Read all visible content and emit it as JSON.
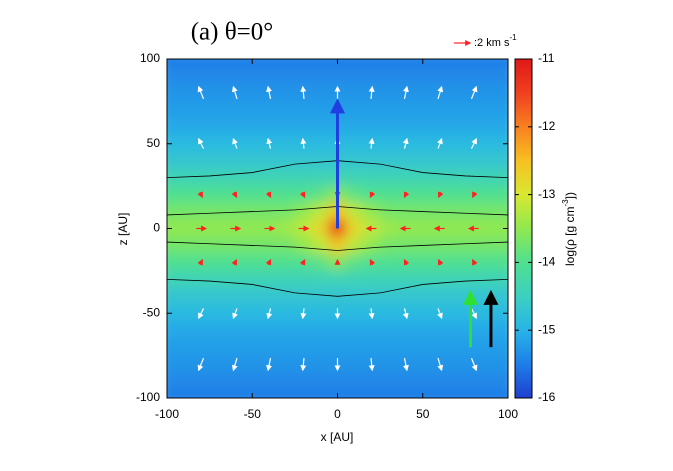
{
  "chart_data": {
    "type": "heatmap",
    "title": "(a) θ=0°",
    "xlabel": "x [AU]",
    "ylabel": "z [AU]",
    "xlim": [
      -100,
      100
    ],
    "ylim": [
      -100,
      100
    ],
    "xticks": [
      -100,
      -50,
      0,
      50,
      100
    ],
    "yticks": [
      -100,
      -50,
      0,
      50,
      100
    ],
    "x": [
      -100,
      -90,
      -80,
      -70,
      -60,
      -50,
      -40,
      -30,
      -20,
      -10,
      0,
      10,
      20,
      30,
      40,
      50,
      60,
      70,
      80,
      90,
      100
    ],
    "z": [
      100,
      90,
      80,
      70,
      60,
      50,
      40,
      30,
      20,
      10,
      0,
      -10,
      -20,
      -30,
      -40,
      -50,
      -60,
      -70,
      -80,
      -90,
      -100
    ],
    "values": [
      [
        -15.5,
        -15.5,
        -15.5,
        -15.5,
        -15.5,
        -15.5,
        -15.5,
        -15.5,
        -15.5,
        -15.5,
        -15.5,
        -15.5,
        -15.5,
        -15.5,
        -15.5,
        -15.5,
        -15.5,
        -15.5,
        -15.5,
        -15.5,
        -15.5
      ],
      [
        -15.4,
        -15.4,
        -15.4,
        -15.4,
        -15.4,
        -15.4,
        -15.4,
        -15.4,
        -15.4,
        -15.4,
        -15.4,
        -15.4,
        -15.4,
        -15.4,
        -15.4,
        -15.4,
        -15.4,
        -15.4,
        -15.4,
        -15.4,
        -15.4
      ],
      [
        -15.3,
        -15.3,
        -15.3,
        -15.3,
        -15.3,
        -15.3,
        -15.3,
        -15.3,
        -15.3,
        -15.3,
        -15.3,
        -15.3,
        -15.3,
        -15.3,
        -15.3,
        -15.3,
        -15.3,
        -15.3,
        -15.3,
        -15.3,
        -15.3
      ],
      [
        -15.2,
        -15.2,
        -15.2,
        -15.2,
        -15.2,
        -15.2,
        -15.2,
        -15.2,
        -15.2,
        -15.2,
        -15.2,
        -15.2,
        -15.2,
        -15.2,
        -15.2,
        -15.2,
        -15.2,
        -15.2,
        -15.2,
        -15.2,
        -15.2
      ],
      [
        -15.1,
        -15.1,
        -15.1,
        -15.1,
        -15.1,
        -15.1,
        -15.1,
        -15.1,
        -15.1,
        -15.1,
        -15.1,
        -15.1,
        -15.1,
        -15.1,
        -15.1,
        -15.1,
        -15.1,
        -15.1,
        -15.1,
        -15.1,
        -15.1
      ],
      [
        -14.9,
        -14.9,
        -14.9,
        -14.9,
        -14.9,
        -14.9,
        -14.9,
        -14.9,
        -14.9,
        -14.9,
        -14.9,
        -14.9,
        -14.9,
        -14.9,
        -14.9,
        -14.9,
        -14.9,
        -14.9,
        -14.9,
        -14.9,
        -14.9
      ],
      [
        -14.7,
        -14.7,
        -14.7,
        -14.7,
        -14.7,
        -14.7,
        -14.7,
        -14.7,
        -14.7,
        -14.7,
        -14.7,
        -14.7,
        -14.7,
        -14.7,
        -14.7,
        -14.7,
        -14.7,
        -14.7,
        -14.7,
        -14.7,
        -14.7
      ],
      [
        -14.4,
        -14.4,
        -14.4,
        -14.4,
        -14.4,
        -14.4,
        -14.4,
        -14.4,
        -14.4,
        -14.4,
        -14.4,
        -14.4,
        -14.4,
        -14.4,
        -14.4,
        -14.4,
        -14.4,
        -14.4,
        -14.4,
        -14.4,
        -14.4
      ],
      [
        -14.0,
        -14.0,
        -14.0,
        -14.0,
        -14.0,
        -14.0,
        -14.0,
        -14.0,
        -14.0,
        -13.9,
        -13.6,
        -13.9,
        -14.0,
        -14.0,
        -14.0,
        -14.0,
        -14.0,
        -14.0,
        -14.0,
        -14.0,
        -14.0
      ],
      [
        -13.7,
        -13.7,
        -13.7,
        -13.7,
        -13.7,
        -13.7,
        -13.7,
        -13.7,
        -13.5,
        -13.2,
        -12.6,
        -13.2,
        -13.5,
        -13.7,
        -13.7,
        -13.7,
        -13.7,
        -13.7,
        -13.7,
        -13.7,
        -13.7
      ],
      [
        -13.5,
        -13.5,
        -13.5,
        -13.5,
        -13.5,
        -13.5,
        -13.5,
        -13.4,
        -13.2,
        -12.8,
        -11.3,
        -12.8,
        -13.2,
        -13.4,
        -13.5,
        -13.5,
        -13.5,
        -13.5,
        -13.5,
        -13.5,
        -13.5
      ],
      [
        -13.7,
        -13.7,
        -13.7,
        -13.7,
        -13.7,
        -13.7,
        -13.7,
        -13.7,
        -13.5,
        -13.2,
        -12.6,
        -13.2,
        -13.5,
        -13.7,
        -13.7,
        -13.7,
        -13.7,
        -13.7,
        -13.7,
        -13.7,
        -13.7
      ],
      [
        -14.0,
        -14.0,
        -14.0,
        -14.0,
        -14.0,
        -14.0,
        -14.0,
        -14.0,
        -14.0,
        -13.9,
        -13.6,
        -13.9,
        -14.0,
        -14.0,
        -14.0,
        -14.0,
        -14.0,
        -14.0,
        -14.0,
        -14.0,
        -14.0
      ],
      [
        -14.4,
        -14.4,
        -14.4,
        -14.4,
        -14.4,
        -14.4,
        -14.4,
        -14.4,
        -14.4,
        -14.4,
        -14.4,
        -14.4,
        -14.4,
        -14.4,
        -14.4,
        -14.4,
        -14.4,
        -14.4,
        -14.4,
        -14.4,
        -14.4
      ],
      [
        -14.7,
        -14.7,
        -14.7,
        -14.7,
        -14.7,
        -14.7,
        -14.7,
        -14.7,
        -14.7,
        -14.7,
        -14.7,
        -14.7,
        -14.7,
        -14.7,
        -14.7,
        -14.7,
        -14.7,
        -14.7,
        -14.7,
        -14.7,
        -14.7
      ],
      [
        -14.9,
        -14.9,
        -14.9,
        -14.9,
        -14.9,
        -14.9,
        -14.9,
        -14.9,
        -14.9,
        -14.9,
        -14.9,
        -14.9,
        -14.9,
        -14.9,
        -14.9,
        -14.9,
        -14.9,
        -14.9,
        -14.9,
        -14.9,
        -14.9
      ],
      [
        -15.1,
        -15.1,
        -15.1,
        -15.1,
        -15.1,
        -15.1,
        -15.1,
        -15.1,
        -15.1,
        -15.1,
        -15.1,
        -15.1,
        -15.1,
        -15.1,
        -15.1,
        -15.1,
        -15.1,
        -15.1,
        -15.1,
        -15.1,
        -15.1
      ],
      [
        -15.2,
        -15.2,
        -15.2,
        -15.2,
        -15.2,
        -15.2,
        -15.2,
        -15.2,
        -15.2,
        -15.2,
        -15.2,
        -15.2,
        -15.2,
        -15.2,
        -15.2,
        -15.2,
        -15.2,
        -15.2,
        -15.2,
        -15.2,
        -15.2
      ],
      [
        -15.3,
        -15.3,
        -15.3,
        -15.3,
        -15.3,
        -15.3,
        -15.3,
        -15.3,
        -15.3,
        -15.3,
        -15.3,
        -15.3,
        -15.3,
        -15.3,
        -15.3,
        -15.3,
        -15.3,
        -15.3,
        -15.3,
        -15.3,
        -15.3
      ],
      [
        -15.4,
        -15.4,
        -15.4,
        -15.4,
        -15.4,
        -15.4,
        -15.4,
        -15.4,
        -15.4,
        -15.4,
        -15.4,
        -15.4,
        -15.4,
        -15.4,
        -15.4,
        -15.4,
        -15.4,
        -15.4,
        -15.4,
        -15.4,
        -15.4
      ],
      [
        -15.5,
        -15.5,
        -15.5,
        -15.5,
        -15.5,
        -15.5,
        -15.5,
        -15.5,
        -15.5,
        -15.5,
        -15.5,
        -15.5,
        -15.5,
        -15.5,
        -15.5,
        -15.5,
        -15.5,
        -15.5,
        -15.5,
        -15.5,
        -15.5
      ]
    ],
    "clim": [
      -16,
      -11
    ],
    "cticks": [
      -11,
      -12,
      -13,
      -14,
      -15,
      -16
    ],
    "colormap": [
      "#1f3fd0",
      "#1e7ee8",
      "#28b4e8",
      "#3cd0c0",
      "#50e090",
      "#90e850",
      "#d8e830",
      "#f8c020",
      "#f88020",
      "#f04020",
      "#e01818"
    ],
    "colorbar_label": "log(ρ [g cm",
    "colorbar_label_sup": "-3",
    "colorbar_label_end": "])",
    "vector_key": {
      "value": 2,
      "label": ":2 km s",
      "unit_sup": "-1",
      "color": "#ff2020"
    },
    "vector_sets": [
      {
        "color": "#ffffff",
        "x": [
          -80,
          -60,
          -40,
          -20,
          0,
          20,
          40,
          60,
          80,
          -80,
          -60,
          -40,
          -20,
          0,
          20,
          40,
          60,
          80,
          -80,
          -60,
          -40,
          -20,
          0,
          20,
          40,
          60,
          80,
          -80,
          -60,
          -40,
          -20,
          0,
          20,
          40,
          60,
          80
        ],
        "z": [
          80,
          80,
          80,
          80,
          80,
          80,
          80,
          80,
          80,
          50,
          50,
          50,
          50,
          50,
          50,
          50,
          50,
          50,
          -50,
          -50,
          -50,
          -50,
          -50,
          -50,
          -50,
          -50,
          -50,
          -80,
          -80,
          -80,
          -80,
          -80,
          -80,
          -80,
          -80,
          -80
        ],
        "u": [
          -0.6,
          -0.45,
          -0.3,
          -0.15,
          0,
          0.15,
          0.3,
          0.45,
          0.6,
          -0.6,
          -0.45,
          -0.3,
          -0.15,
          0,
          0.15,
          0.3,
          0.45,
          0.6,
          -0.6,
          -0.45,
          -0.3,
          -0.15,
          0,
          0.15,
          0.3,
          0.45,
          0.6,
          -0.6,
          -0.45,
          -0.3,
          -0.15,
          0,
          0.15,
          0.3,
          0.45,
          0.6
        ],
        "w": [
          1.5,
          1.5,
          1.5,
          1.5,
          1.5,
          1.5,
          1.5,
          1.5,
          1.5,
          1.2,
          1.2,
          1.2,
          1.2,
          1.2,
          1.2,
          1.2,
          1.2,
          1.2,
          -1.2,
          -1.2,
          -1.2,
          -1.2,
          -1.2,
          -1.2,
          -1.2,
          -1.2,
          -1.2,
          -1.5,
          -1.5,
          -1.5,
          -1.5,
          -1.5,
          -1.5,
          -1.5,
          -1.5,
          -1.5
        ]
      },
      {
        "color": "#ff2020",
        "x": [
          -80,
          -60,
          -40,
          -20,
          20,
          40,
          60,
          80,
          -80,
          -60,
          -40,
          -20,
          0,
          20,
          40,
          60,
          80,
          -80,
          -60,
          -40,
          -20,
          0,
          20,
          40,
          60,
          80
        ],
        "z": [
          0,
          0,
          0,
          0,
          0,
          0,
          0,
          0,
          20,
          20,
          20,
          20,
          20,
          20,
          20,
          20,
          20,
          -20,
          -20,
          -20,
          -20,
          -20,
          -20,
          -20,
          -20,
          -20
        ],
        "u": [
          1.2,
          1.2,
          1.2,
          1.2,
          -1.2,
          -1.2,
          -1.2,
          -1.2,
          0.3,
          0.3,
          0.3,
          0.3,
          0,
          -0.3,
          -0.3,
          -0.3,
          -0.3,
          0.3,
          0.3,
          0.3,
          0.3,
          0,
          -0.3,
          -0.3,
          -0.3,
          -0.3
        ],
        "w": [
          0,
          0,
          0,
          0,
          0,
          0,
          0,
          0,
          -0.6,
          -0.6,
          -0.6,
          -0.6,
          -0.6,
          -0.6,
          -0.6,
          -0.6,
          -0.6,
          0.6,
          0.6,
          0.6,
          0.6,
          0.6,
          0.6,
          0.6,
          0.6,
          0.6
        ]
      }
    ],
    "contours": [
      {
        "x": [
          -100,
          -75,
          -50,
          -25,
          0,
          25,
          50,
          75,
          100
        ],
        "z": [
          30,
          31,
          33,
          38,
          40,
          38,
          33,
          31,
          30
        ]
      },
      {
        "x": [
          -100,
          -75,
          -50,
          -25,
          0,
          25,
          50,
          75,
          100
        ],
        "z": [
          -30,
          -31,
          -33,
          -38,
          -40,
          -38,
          -33,
          -31,
          -30
        ]
      },
      {
        "x": [
          -100,
          -75,
          -50,
          -25,
          0,
          25,
          50,
          75,
          100
        ],
        "z": [
          8,
          9,
          10,
          11,
          13,
          11,
          10,
          9,
          8
        ]
      },
      {
        "x": [
          -100,
          -75,
          -50,
          -25,
          0,
          25,
          50,
          75,
          100
        ],
        "z": [
          -8,
          -9,
          -10,
          -11,
          -13,
          -11,
          -10,
          -9,
          -8
        ]
      }
    ],
    "big_arrows": [
      {
        "color": "#1f3fe0",
        "x": 0,
        "z": [
          0,
          75
        ]
      },
      {
        "color": "#30e030",
        "x": 78,
        "z": [
          -70,
          -38
        ]
      },
      {
        "color": "#000000",
        "x": 90,
        "z": [
          -70,
          -38
        ]
      }
    ]
  }
}
